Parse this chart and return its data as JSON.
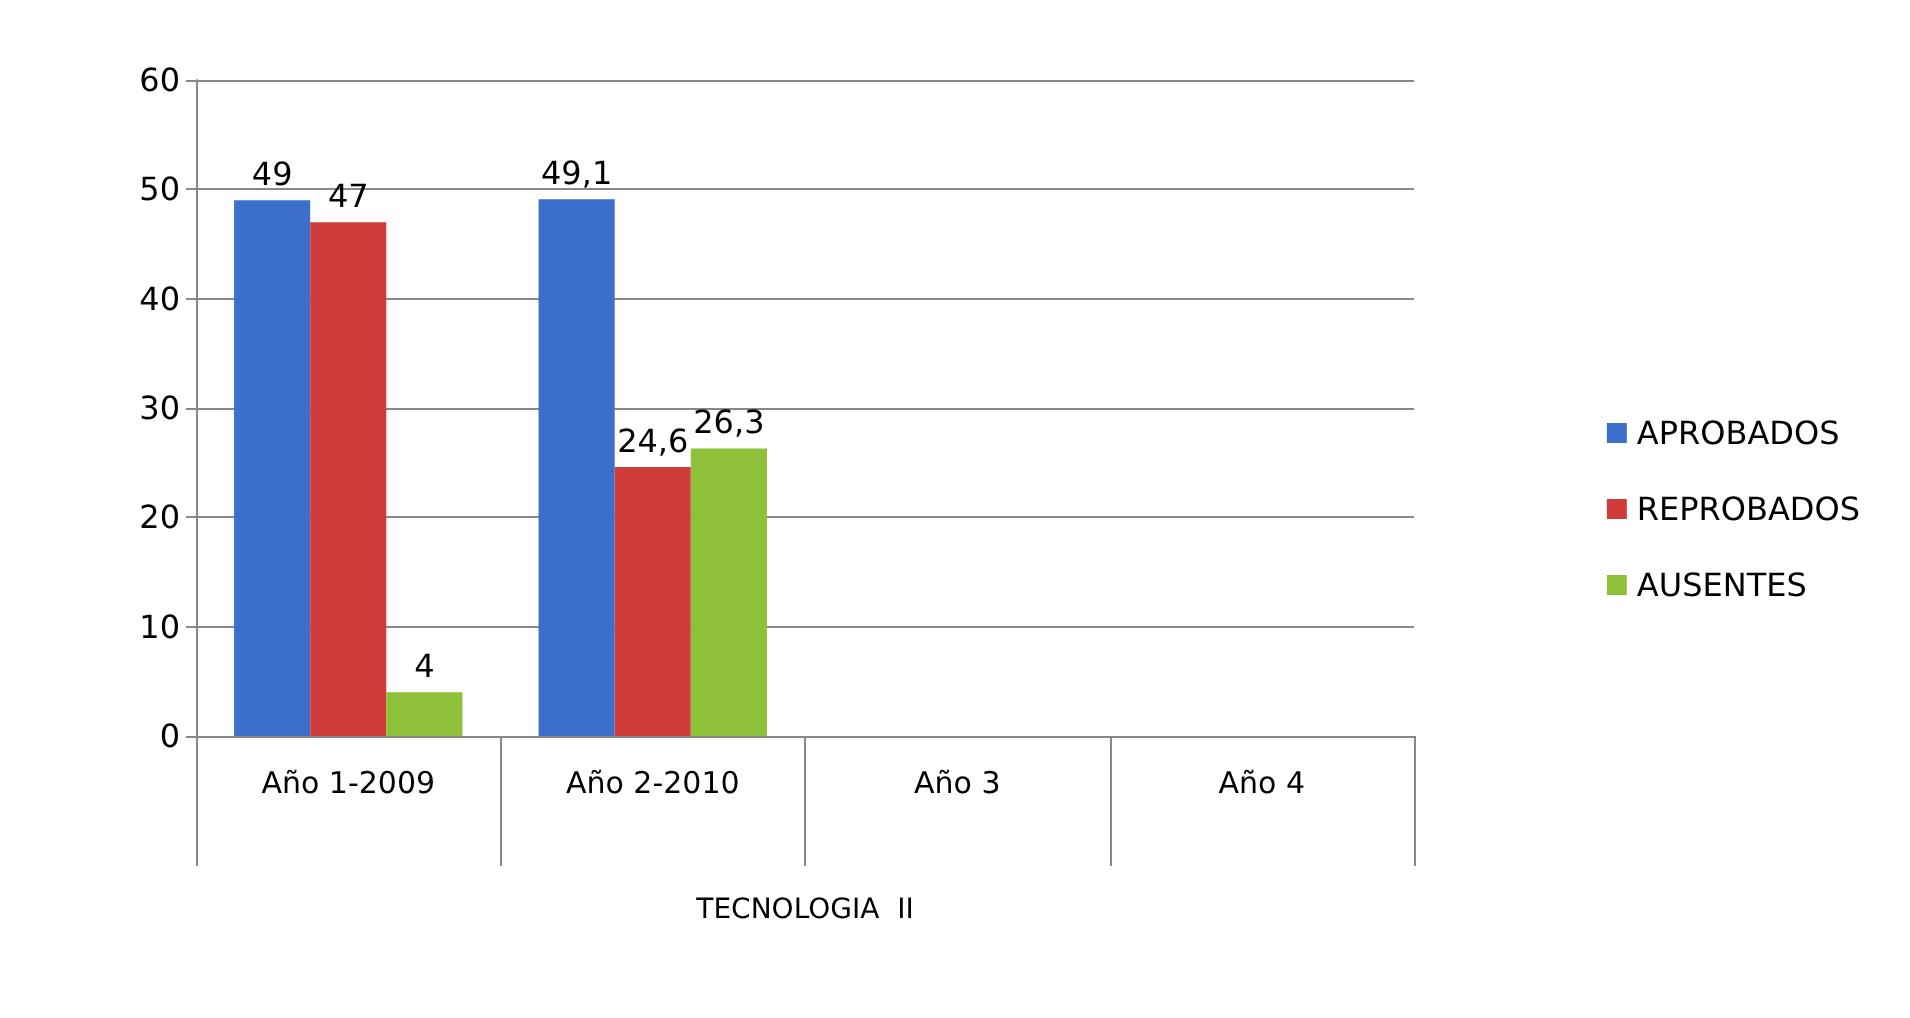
{
  "chart_data": {
    "type": "bar",
    "categories": [
      "Año 1-2009",
      "Año 2-2010",
      "Año 3",
      "Año 4"
    ],
    "xlabel": "TECNOLOGIA  II",
    "series": [
      {
        "name": "APROBADOS",
        "color": "#3c6fcc",
        "values": [
          49,
          49.1,
          null,
          null
        ],
        "value_labels": [
          "49",
          "49,1",
          null,
          null
        ]
      },
      {
        "name": "REPROBADOS",
        "color": "#d03c3a",
        "values": [
          47,
          24.6,
          null,
          null
        ],
        "value_labels": [
          "47",
          "24,6",
          null,
          null
        ]
      },
      {
        "name": "AUSENTES",
        "color": "#8fc03a",
        "values": [
          4,
          26.3,
          null,
          null
        ],
        "value_labels": [
          "4",
          "26,3",
          null,
          null
        ]
      }
    ],
    "ylim": [
      0,
      60
    ],
    "yticks": [
      0,
      10,
      20,
      30,
      40,
      50,
      60
    ],
    "grid": "y",
    "legend": "right"
  }
}
